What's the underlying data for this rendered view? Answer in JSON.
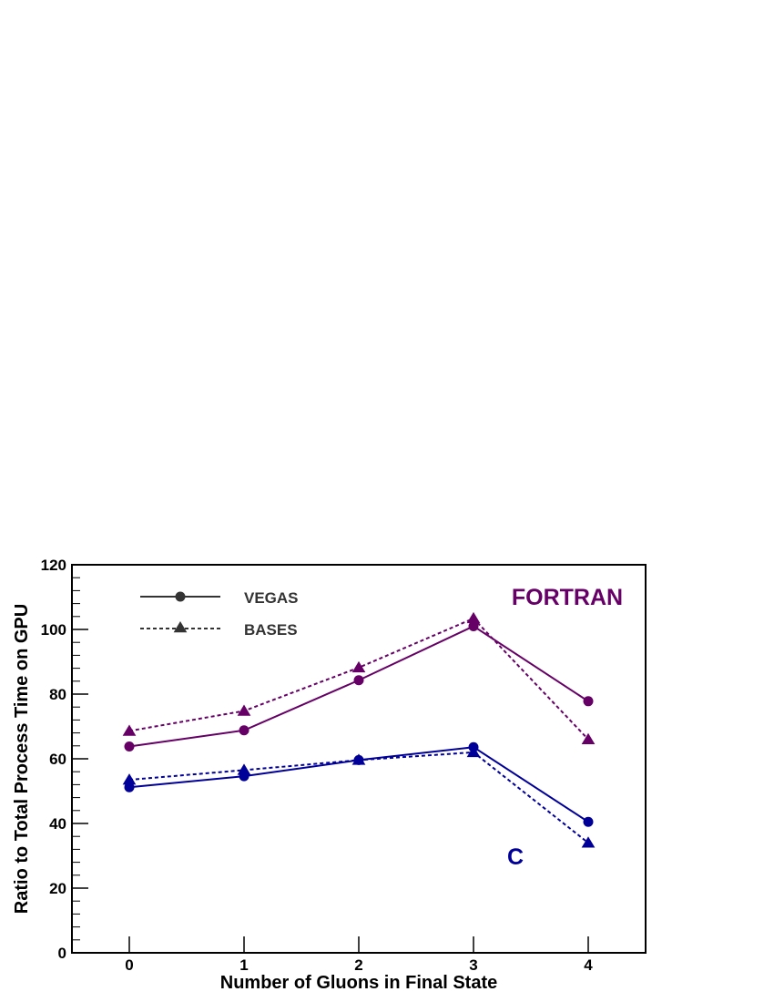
{
  "chart_data": {
    "type": "line",
    "title": "",
    "xlabel": "Number of Gluons in Final State",
    "ylabel": "Ratio to Total Process Time on GPU",
    "x": [
      0,
      1,
      2,
      3,
      4
    ],
    "xlim": [
      -0.5,
      4.5
    ],
    "ylim": [
      0,
      120
    ],
    "xticks": [
      "0",
      "1",
      "2",
      "3",
      "4"
    ],
    "yticks": [
      "0",
      "20",
      "40",
      "60",
      "80",
      "100",
      "120"
    ],
    "grid": false,
    "legend": {
      "placement": "top-left",
      "entries": [
        {
          "label": "VEGAS",
          "marker": "circle",
          "line": "solid"
        },
        {
          "label": "BASES",
          "marker": "triangle",
          "line": "dashed"
        }
      ]
    },
    "annotations": [
      {
        "text": "FORTRAN",
        "color": "#660066"
      },
      {
        "text": "C",
        "color": "#000099"
      }
    ],
    "colors": {
      "fortran": "#660066",
      "c": "#000099",
      "legend": "#333333"
    },
    "series": [
      {
        "group": "FORTRAN",
        "method": "VEGAS",
        "marker": "circle",
        "line": "solid",
        "color": "#660066",
        "values": [
          63.8,
          68.8,
          84.3,
          101.0,
          77.8
        ]
      },
      {
        "group": "FORTRAN",
        "method": "BASES",
        "marker": "triangle",
        "line": "dashed",
        "color": "#660066",
        "values": [
          68.6,
          74.8,
          88.2,
          103.4,
          66.0
        ]
      },
      {
        "group": "C",
        "method": "VEGAS",
        "marker": "circle",
        "line": "solid",
        "color": "#000099",
        "values": [
          51.2,
          54.6,
          59.6,
          63.6,
          40.5
        ]
      },
      {
        "group": "C",
        "method": "BASES",
        "marker": "triangle",
        "line": "dashed",
        "color": "#000099",
        "values": [
          53.5,
          56.5,
          59.6,
          62.0,
          34.0
        ]
      }
    ]
  }
}
